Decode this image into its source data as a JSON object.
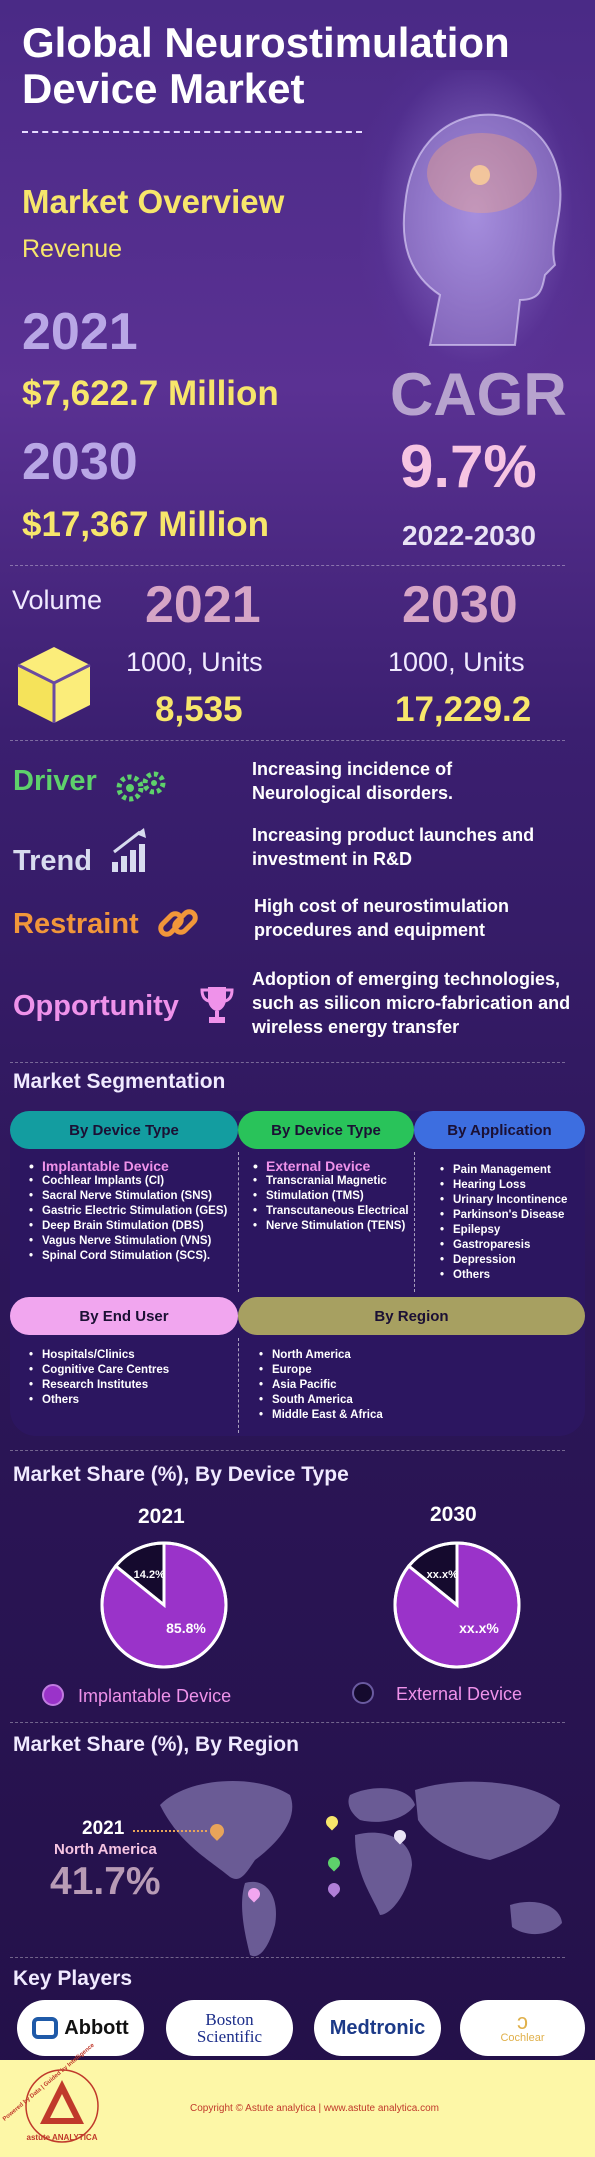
{
  "header": {
    "title_line1": "Global Neurostimulation",
    "title_line2": "Device Market"
  },
  "overview": {
    "heading": "Market Overview",
    "revenue_label": "Revenue",
    "year1": "2021",
    "value1": "$7,622.7 Million",
    "year2": "2030",
    "value2": "$17,367 Million",
    "cagr_label": "CAGR",
    "cagr_value": "9.7%",
    "cagr_period": "2022-2030"
  },
  "volume": {
    "label": "Volume",
    "year1": "2021",
    "year2": "2030",
    "unit1": "1000, Units",
    "unit2": "1000, Units",
    "value1": "8,535",
    "value2": "17,229.2"
  },
  "dynamics": [
    {
      "label": "Driver",
      "icon": "gears-icon",
      "text1": "Increasing incidence of",
      "text2": "Neurological disorders.",
      "text3": ""
    },
    {
      "label": "Trend",
      "icon": "growth-bars-icon",
      "text1": "Increasing product launches and",
      "text2": "investment in R&D",
      "text3": ""
    },
    {
      "label": "Restraint",
      "icon": "chain-link-icon",
      "text1": "High cost of neurostimulation",
      "text2": "procedures and equipment",
      "text3": ""
    },
    {
      "label": "Opportunity",
      "icon": "trophy-icon",
      "text1": "Adoption of emerging technologies,",
      "text2": "such as silicon micro-fabrication and",
      "text3": "wireless energy transfer"
    }
  ],
  "segmentation": {
    "heading": "Market Segmentation",
    "device1": {
      "header": "By Device Type",
      "color": "#139da0",
      "subhead": "Implantable Device",
      "items": [
        "Cochlear Implants (CI)",
        "Sacral Nerve Stimulation (SNS)",
        "Gastric Electric Stimulation (GES)",
        "Deep Brain Stimulation (DBS)",
        "Vagus Nerve Stimulation (VNS)",
        "Spinal Cord Stimulation (SCS)."
      ]
    },
    "device2": {
      "header": "By Device Type",
      "color": "#29c35a",
      "subhead": "External Device",
      "items": [
        "Transcranial Magnetic",
        "Stimulation (TMS)",
        "Transcutaneous Electrical",
        "Nerve Stimulation (TENS)"
      ]
    },
    "application": {
      "header": "By Application",
      "color": "#3d6ee0",
      "items": [
        "Pain Management",
        "Hearing Loss",
        "Urinary Incontinence",
        "Parkinson's Disease",
        "Epilepsy",
        "Gastroparesis",
        "Depression",
        "Others"
      ]
    },
    "end_user": {
      "header": "By End User",
      "color": "#f1a6ef",
      "items": [
        "Hospitals/Clinics",
        "Cognitive Care Centres",
        "Research Institutes",
        "Others"
      ]
    },
    "region": {
      "header": "By Region",
      "color": "#a7a061",
      "items": [
        "North America",
        "Europe",
        "Asia Pacific",
        "South America",
        "Middle East & Africa"
      ]
    }
  },
  "share_device": {
    "heading": "Market Share (%), By Device Type",
    "year1": "2021",
    "year2": "2030",
    "pie1": {
      "implantable_label": "85.8%",
      "external_label": "14.2%",
      "implantable_value": 85.8,
      "external_value": 14.2
    },
    "pie2": {
      "implantable_label": "xx.x%",
      "external_label": "xx.x%",
      "implantable_value": 85.8,
      "external_value": 14.2
    },
    "legend": [
      "Implantable Device",
      "External Device"
    ],
    "colors": {
      "implantable": "#9a33c9",
      "external": "#150a2e"
    }
  },
  "share_region": {
    "heading": "Market Share (%), By Region",
    "year": "2021",
    "region": "North America",
    "value": "41.7%"
  },
  "key_players": {
    "heading": "Key Players",
    "logos": [
      "Abbott",
      "Boston Scientific",
      "Medtronic",
      "Cochlear"
    ]
  },
  "footer": {
    "brand": "astute ANALYTICA",
    "tagline": "Powered by Data | Guided by Intelligence",
    "copyright": "Copyright © Astute analytica | www.astute analytica.com"
  }
}
